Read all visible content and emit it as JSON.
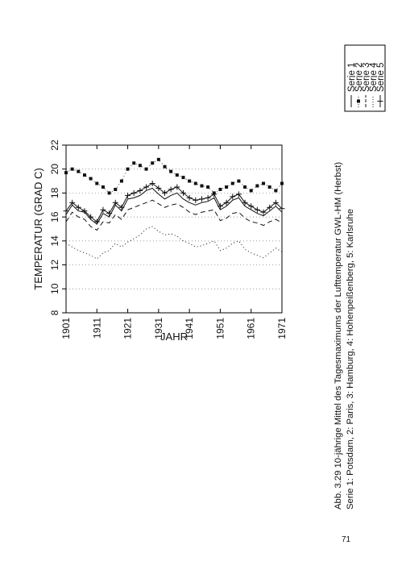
{
  "caption": {
    "line1": "Abb. 3.29 10-jährige Mittel des Tagesmaximums der Lufttemperatur GWL-HM (Herbst)",
    "line2": "Serie 1: Potsdam, 2: Paris, 3: Hamburg, 4: Hohenpeißenberg, 5: Karlsruhe"
  },
  "page_number": "71",
  "chart_data": {
    "type": "line",
    "xlabel": "JAHR",
    "ylabel": "TEMPERATUR (GRAD C)",
    "xlim": [
      1901,
      1971
    ],
    "ylim": [
      8,
      22
    ],
    "x_ticks": [
      "1901",
      "1911",
      "1921",
      "1931",
      "1941",
      "1951",
      "1961",
      "1971"
    ],
    "y_ticks": [
      "8",
      "10",
      "12",
      "14",
      "16",
      "18",
      "20",
      "22"
    ],
    "grid": "horizontal dotted at 10, 12, 14, 16, 18, 20",
    "legend_position": "right",
    "x": [
      1901,
      1903,
      1905,
      1907,
      1909,
      1911,
      1913,
      1915,
      1917,
      1919,
      1921,
      1923,
      1925,
      1927,
      1929,
      1931,
      1933,
      1935,
      1937,
      1939,
      1941,
      1943,
      1945,
      1947,
      1949,
      1951,
      1953,
      1955,
      1957,
      1959,
      1961,
      1963,
      1965,
      1967,
      1969,
      1971
    ],
    "series": [
      {
        "name": "Serie 1",
        "style": "solid",
        "values": [
          16.2,
          17.0,
          16.5,
          16.4,
          15.8,
          15.4,
          16.3,
          16.0,
          17.0,
          16.5,
          17.5,
          17.6,
          17.8,
          18.2,
          18.4,
          17.9,
          17.5,
          17.8,
          18.0,
          17.5,
          17.2,
          17.0,
          17.2,
          17.3,
          17.6,
          16.6,
          16.9,
          17.4,
          17.6,
          16.9,
          16.6,
          16.3,
          16.1,
          16.5,
          16.9,
          16.4
        ]
      },
      {
        "name": "Serie 2",
        "style": "dotted-squares",
        "values": [
          19.7,
          20.0,
          19.8,
          19.5,
          19.2,
          18.8,
          18.5,
          18.0,
          18.3,
          19.0,
          20.0,
          20.5,
          20.3,
          20.0,
          20.5,
          20.8,
          20.2,
          19.8,
          19.5,
          19.3,
          19.0,
          18.8,
          18.6,
          18.5,
          18.0,
          18.3,
          18.5,
          18.8,
          19.0,
          18.5,
          18.2,
          18.6,
          18.8,
          18.5,
          18.2,
          18.8
        ]
      },
      {
        "name": "Serie 3",
        "style": "dashed",
        "values": [
          15.6,
          16.4,
          16.0,
          15.8,
          15.2,
          14.9,
          15.6,
          15.5,
          16.2,
          15.8,
          16.6,
          16.8,
          17.0,
          17.2,
          17.4,
          17.1,
          16.8,
          17.0,
          17.1,
          16.8,
          16.4,
          16.2,
          16.4,
          16.5,
          16.6,
          15.7,
          15.9,
          16.3,
          16.4,
          15.9,
          15.6,
          15.5,
          15.3,
          15.6,
          15.8,
          15.5
        ]
      },
      {
        "name": "Serie 4",
        "style": "dotted",
        "values": [
          13.8,
          13.5,
          13.2,
          13.0,
          12.8,
          12.5,
          13.0,
          13.2,
          13.8,
          13.5,
          13.9,
          14.2,
          14.5,
          15.0,
          15.2,
          14.8,
          14.5,
          14.6,
          14.4,
          14.0,
          13.8,
          13.5,
          13.6,
          13.8,
          14.0,
          13.2,
          13.4,
          13.8,
          14.0,
          13.3,
          13.0,
          12.8,
          12.6,
          13.0,
          13.4,
          13.1
        ]
      },
      {
        "name": "Serie 5",
        "style": "solid-crosses",
        "values": [
          16.5,
          17.2,
          16.8,
          16.5,
          16.0,
          15.6,
          16.6,
          16.3,
          17.2,
          16.8,
          17.8,
          18.0,
          18.2,
          18.5,
          18.8,
          18.4,
          18.0,
          18.3,
          18.5,
          18.0,
          17.6,
          17.4,
          17.5,
          17.6,
          17.9,
          16.9,
          17.2,
          17.7,
          17.9,
          17.2,
          16.9,
          16.6,
          16.4,
          16.8,
          17.2,
          16.7
        ]
      }
    ]
  }
}
